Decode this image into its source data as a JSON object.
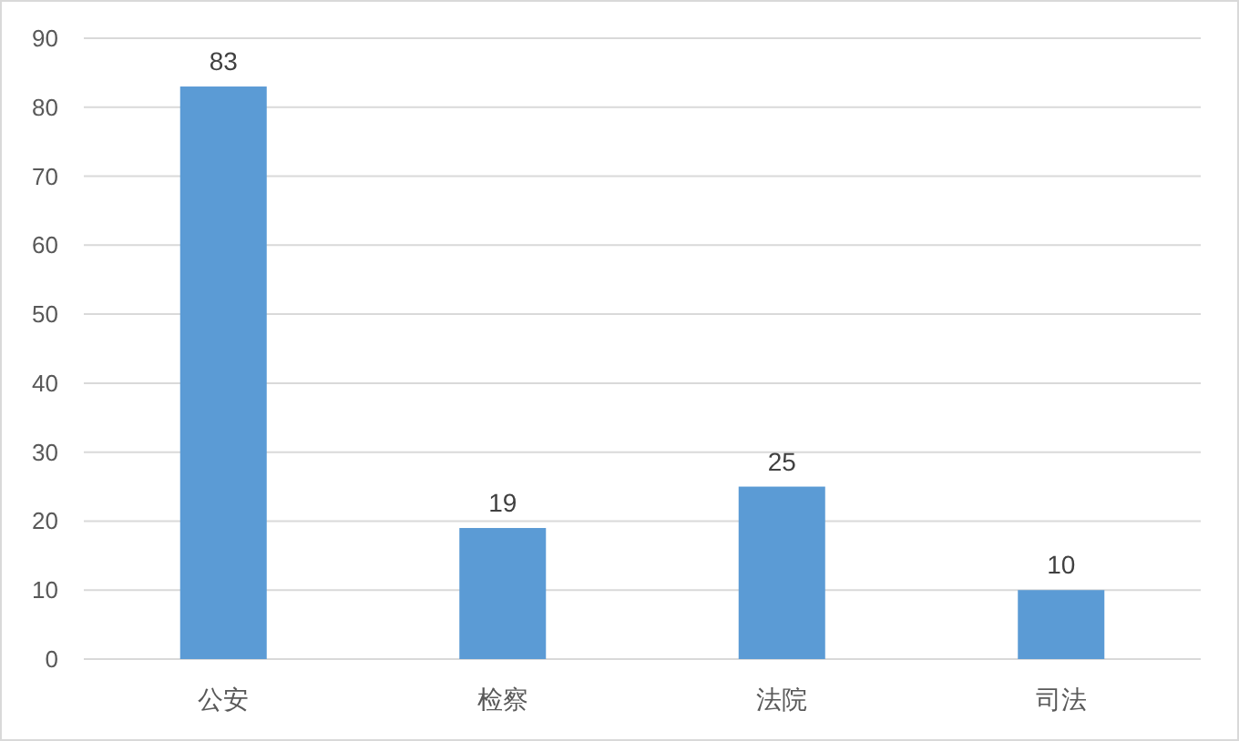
{
  "chart_data": {
    "type": "bar",
    "categories": [
      "公安",
      "检察",
      "法院",
      "司法"
    ],
    "values": [
      83,
      19,
      25,
      10
    ],
    "color": "#5b9bd5",
    "ylim": [
      0,
      90
    ],
    "yticks": [
      0,
      10,
      20,
      30,
      40,
      50,
      60,
      70,
      80,
      90
    ],
    "grid": "y",
    "data_labels": true
  }
}
